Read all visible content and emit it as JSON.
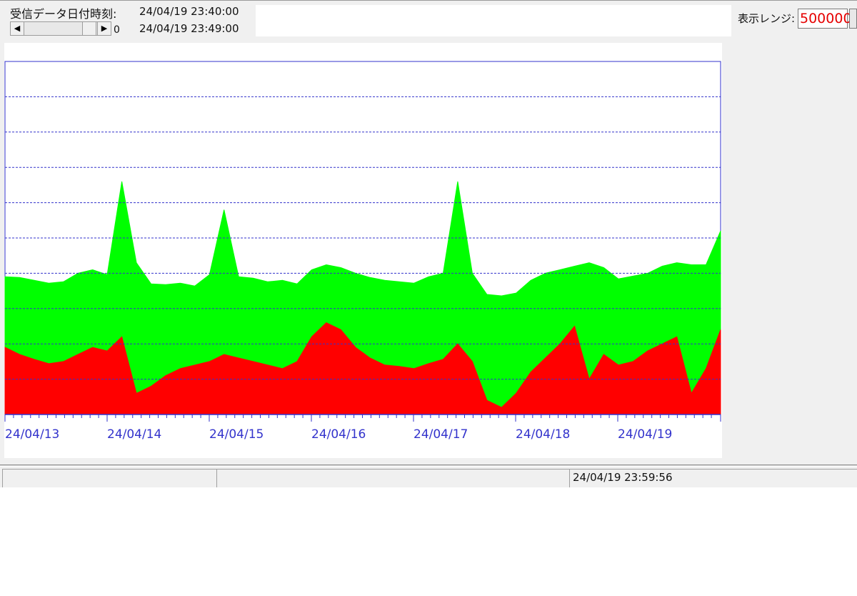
{
  "header": {
    "receive_label": "受信データ日付時刻:",
    "start_time": "24/04/19 23:40:00",
    "end_time": "24/04/19 23:49:00",
    "scroll_value": "0",
    "range_label": "表示レンジ:",
    "range_value": "500000"
  },
  "status_bar": {
    "panel1": "",
    "panel2": "",
    "timestamp": "24/04/19 23:59:56"
  },
  "colors": {
    "green_area": "#00ff00",
    "red_area": "#ff0000",
    "axis_blue": "#3333cc",
    "range_text": "#e60000"
  },
  "chart_data": {
    "type": "area",
    "x_tick_labels": [
      "24/04/13",
      "24/04/14",
      "24/04/15",
      "24/04/16",
      "24/04/17",
      "24/04/18",
      "24/04/19"
    ],
    "y_range": [
      0,
      500000
    ],
    "y_grid_lines": 9,
    "grid": true,
    "series": [
      {
        "color": "#00ff00",
        "values": [
          195000,
          194000,
          190000,
          186000,
          188000,
          200000,
          205000,
          198000,
          330000,
          215000,
          185000,
          184000,
          186000,
          182000,
          198000,
          290000,
          195000,
          193000,
          188000,
          190000,
          185000,
          205000,
          212000,
          208000,
          200000,
          194000,
          190000,
          188000,
          186000,
          195000,
          200000,
          330000,
          200000,
          170000,
          168000,
          172000,
          190000,
          200000,
          205000,
          210000,
          215000,
          208000,
          192000,
          196000,
          200000,
          210000,
          215000,
          212000,
          212000,
          260000
        ]
      },
      {
        "color": "#ff0000",
        "values": [
          95000,
          85000,
          78000,
          72000,
          75000,
          85000,
          95000,
          90000,
          110000,
          30000,
          40000,
          55000,
          65000,
          70000,
          75000,
          85000,
          80000,
          75000,
          70000,
          65000,
          75000,
          110000,
          130000,
          120000,
          95000,
          80000,
          70000,
          68000,
          65000,
          72000,
          78000,
          100000,
          75000,
          20000,
          10000,
          30000,
          60000,
          80000,
          100000,
          125000,
          50000,
          85000,
          70000,
          75000,
          90000,
          100000,
          110000,
          30000,
          65000,
          120000
        ]
      }
    ]
  }
}
